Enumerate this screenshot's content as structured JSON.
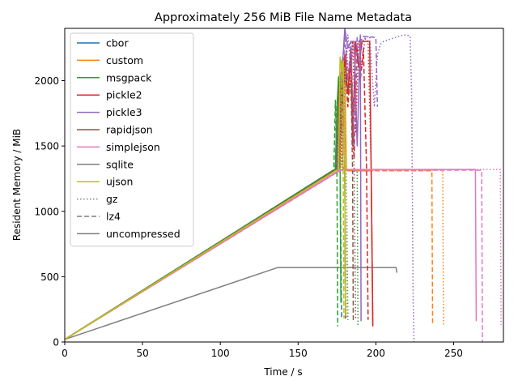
{
  "chart_data": {
    "type": "line",
    "title": "Approximately 256 MiB File Name Metadata",
    "xlabel": "Time / s",
    "ylabel": "Resident Memory / MiB",
    "xlim": [
      0,
      282
    ],
    "ylim": [
      0,
      2400
    ],
    "xticks": [
      0,
      50,
      100,
      150,
      200,
      250
    ],
    "yticks": [
      0,
      500,
      1000,
      1500,
      2000
    ],
    "grid": false,
    "legend_position": "top-left",
    "legend": [
      {
        "label": "cbor",
        "color": "#1f77b4",
        "dash": "solid"
      },
      {
        "label": "custom",
        "color": "#ff7f0e",
        "dash": "solid"
      },
      {
        "label": "msgpack",
        "color": "#2ca02c",
        "dash": "solid"
      },
      {
        "label": "pickle2",
        "color": "#d62728",
        "dash": "solid"
      },
      {
        "label": "pickle3",
        "color": "#9467bd",
        "dash": "solid"
      },
      {
        "label": "rapidjson",
        "color": "#8c564b",
        "dash": "solid"
      },
      {
        "label": "simplejson",
        "color": "#e377c2",
        "dash": "solid"
      },
      {
        "label": "sqlite",
        "color": "#7f7f7f",
        "dash": "solid"
      },
      {
        "label": "ujson",
        "color": "#bcbd22",
        "dash": "solid"
      },
      {
        "label": "gz",
        "color": "#7f7f7f",
        "dash": "dotted"
      },
      {
        "label": "lz4",
        "color": "#7f7f7f",
        "dash": "dashed"
      },
      {
        "label": "uncompressed",
        "color": "#7f7f7f",
        "dash": "solid"
      }
    ],
    "series": [
      {
        "color": "#7f7f7f",
        "dash": "solid",
        "x": [
          0,
          137,
          213,
          213.5
        ],
        "y": [
          20,
          570,
          570,
          530
        ]
      },
      {
        "color": "#1f77b4",
        "dash": "solid",
        "x": [
          0,
          172,
          174,
          176,
          177,
          178,
          179,
          180,
          180.5
        ],
        "y": [
          20,
          1310,
          1320,
          1700,
          2050,
          1900,
          2000,
          1320,
          180
        ]
      },
      {
        "color": "#1f77b4",
        "dash": "dashed",
        "x": [
          0,
          172,
          174,
          175,
          176,
          177,
          178
        ],
        "y": [
          20,
          1310,
          1320,
          1800,
          1950,
          1320,
          180
        ]
      },
      {
        "color": "#1f77b4",
        "dash": "dotted",
        "x": [
          0,
          173,
          175,
          177,
          179,
          181,
          182
        ],
        "y": [
          20,
          1315,
          1330,
          1900,
          2050,
          1320,
          170
        ]
      },
      {
        "color": "#ff7f0e",
        "dash": "solid",
        "x": [
          0,
          175,
          177,
          178,
          179,
          180,
          181,
          197,
          198
        ],
        "y": [
          20,
          1300,
          1310,
          2150,
          1900,
          2150,
          1310,
          1310,
          120
        ]
      },
      {
        "color": "#ff7f0e",
        "dash": "dashed",
        "x": [
          0,
          175,
          177,
          178,
          179,
          236,
          236.5
        ],
        "y": [
          20,
          1300,
          1310,
          2100,
          1310,
          1310,
          130
        ]
      },
      {
        "color": "#ff7f0e",
        "dash": "dotted",
        "x": [
          0,
          176,
          178,
          179,
          180,
          243,
          243.5
        ],
        "y": [
          20,
          1305,
          1315,
          2100,
          1315,
          1315,
          130
        ]
      },
      {
        "color": "#2ca02c",
        "dash": "solid",
        "x": [
          0,
          172,
          174,
          175,
          176,
          177,
          177.5
        ],
        "y": [
          20,
          1310,
          1320,
          1800,
          2030,
          1320,
          300
        ]
      },
      {
        "color": "#2ca02c",
        "dash": "dashed",
        "x": [
          0,
          172,
          173,
          174,
          175,
          175.5
        ],
        "y": [
          20,
          1310,
          1320,
          1850,
          1320,
          120
        ]
      },
      {
        "color": "#2ca02c",
        "dash": "dotted",
        "x": [
          0,
          173,
          175,
          176,
          178,
          179,
          184,
          188,
          188.5
        ],
        "y": [
          20,
          1315,
          1330,
          1950,
          1800,
          1320,
          1320,
          1300,
          130
        ]
      },
      {
        "color": "#d62728",
        "dash": "solid",
        "x": [
          0,
          174,
          176,
          178,
          180,
          182,
          184,
          185,
          187,
          189,
          191,
          193,
          196,
          197,
          198
        ],
        "y": [
          20,
          1310,
          1320,
          1700,
          2200,
          1900,
          2250,
          1500,
          2300,
          2100,
          2300,
          2300,
          2300,
          1310,
          120
        ]
      },
      {
        "color": "#d62728",
        "dash": "dashed",
        "x": [
          0,
          174,
          176,
          178,
          180,
          182,
          184,
          186,
          188,
          190,
          192,
          194,
          195
        ],
        "y": [
          20,
          1310,
          1320,
          1750,
          2150,
          1800,
          2200,
          1400,
          2250,
          2000,
          2250,
          1320,
          170
        ]
      },
      {
        "color": "#d62728",
        "dash": "dotted",
        "x": [
          0,
          175,
          177,
          179,
          181,
          183,
          185,
          187,
          189,
          191,
          193,
          195,
          197,
          198
        ],
        "y": [
          20,
          1315,
          1330,
          1800,
          2250,
          1900,
          2300,
          1600,
          2300,
          2100,
          2320,
          2300,
          1320,
          200
        ]
      },
      {
        "color": "#9467bd",
        "dash": "solid",
        "x": [
          0,
          174,
          176,
          178,
          179,
          180,
          182,
          184,
          186,
          188,
          190,
          190.5
        ],
        "y": [
          20,
          1310,
          1320,
          2100,
          2200,
          2400,
          2250,
          2300,
          2300,
          1500,
          2350,
          160
        ]
      },
      {
        "color": "#9467bd",
        "dash": "dashed",
        "x": [
          0,
          174,
          176,
          178,
          180,
          182,
          184,
          186,
          188,
          190,
          192,
          200,
          201
        ],
        "y": [
          20,
          1310,
          1320,
          1800,
          2350,
          2000,
          2300,
          1500,
          2330,
          2300,
          2340,
          2330,
          1800
        ]
      },
      {
        "color": "#9467bd",
        "dash": "dotted",
        "x": [
          0,
          175,
          178,
          180,
          182,
          184,
          186,
          188,
          190,
          192,
          194,
          196,
          199,
          201,
          203,
          205,
          210,
          215,
          218,
          220,
          222,
          223,
          224,
          224.5
        ],
        "y": [
          20,
          1320,
          1350,
          1900,
          2350,
          2100,
          2300,
          2300,
          2200,
          2320,
          2330,
          2340,
          1800,
          2200,
          2280,
          2300,
          2320,
          2340,
          2350,
          2350,
          2340,
          1900,
          300,
          0
        ]
      },
      {
        "color": "#8c564b",
        "dash": "solid",
        "x": [
          0,
          173,
          175,
          176,
          177,
          178,
          179,
          180,
          180.5
        ],
        "y": [
          20,
          1310,
          1320,
          1900,
          2000,
          1800,
          2000,
          1320,
          180
        ]
      },
      {
        "color": "#8c564b",
        "dash": "dashed",
        "x": [
          0,
          174,
          176,
          178,
          180,
          182,
          184,
          185,
          185.5
        ],
        "y": [
          20,
          1310,
          1320,
          1950,
          2000,
          1950,
          1980,
          1320,
          160
        ]
      },
      {
        "color": "#8c564b",
        "dash": "dotted",
        "x": [
          0,
          174,
          176,
          178,
          180,
          182,
          184,
          186,
          187
        ],
        "y": [
          20,
          1315,
          1330,
          1950,
          2050,
          1900,
          2000,
          1320,
          170
        ]
      },
      {
        "color": "#e377c2",
        "dash": "solid",
        "x": [
          0,
          176,
          178,
          180,
          264,
          264.5
        ],
        "y": [
          20,
          1310,
          1320,
          1320,
          1320,
          160
        ]
      },
      {
        "color": "#e377c2",
        "dash": "dashed",
        "x": [
          0,
          176,
          178,
          268,
          268.5
        ],
        "y": [
          20,
          1305,
          1315,
          1315,
          0
        ]
      },
      {
        "color": "#e377c2",
        "dash": "dotted",
        "x": [
          0,
          177,
          179,
          280,
          280.5
        ],
        "y": [
          20,
          1315,
          1320,
          1320,
          130
        ]
      },
      {
        "color": "#bcbd22",
        "dash": "solid",
        "x": [
          0,
          174,
          176,
          177,
          178,
          179,
          180,
          180.5
        ],
        "y": [
          20,
          1310,
          1320,
          2180,
          2100,
          2150,
          1320,
          200
        ]
      },
      {
        "color": "#bcbd22",
        "dash": "dashed",
        "x": [
          0,
          174,
          176,
          177,
          178,
          179,
          179.5
        ],
        "y": [
          20,
          1310,
          1320,
          2150,
          2100,
          1320,
          180
        ]
      },
      {
        "color": "#bcbd22",
        "dash": "dotted",
        "x": [
          0,
          175,
          177,
          178,
          179,
          180,
          181,
          181.5
        ],
        "y": [
          20,
          1315,
          1325,
          2150,
          2050,
          2100,
          1320,
          190
        ]
      }
    ]
  }
}
